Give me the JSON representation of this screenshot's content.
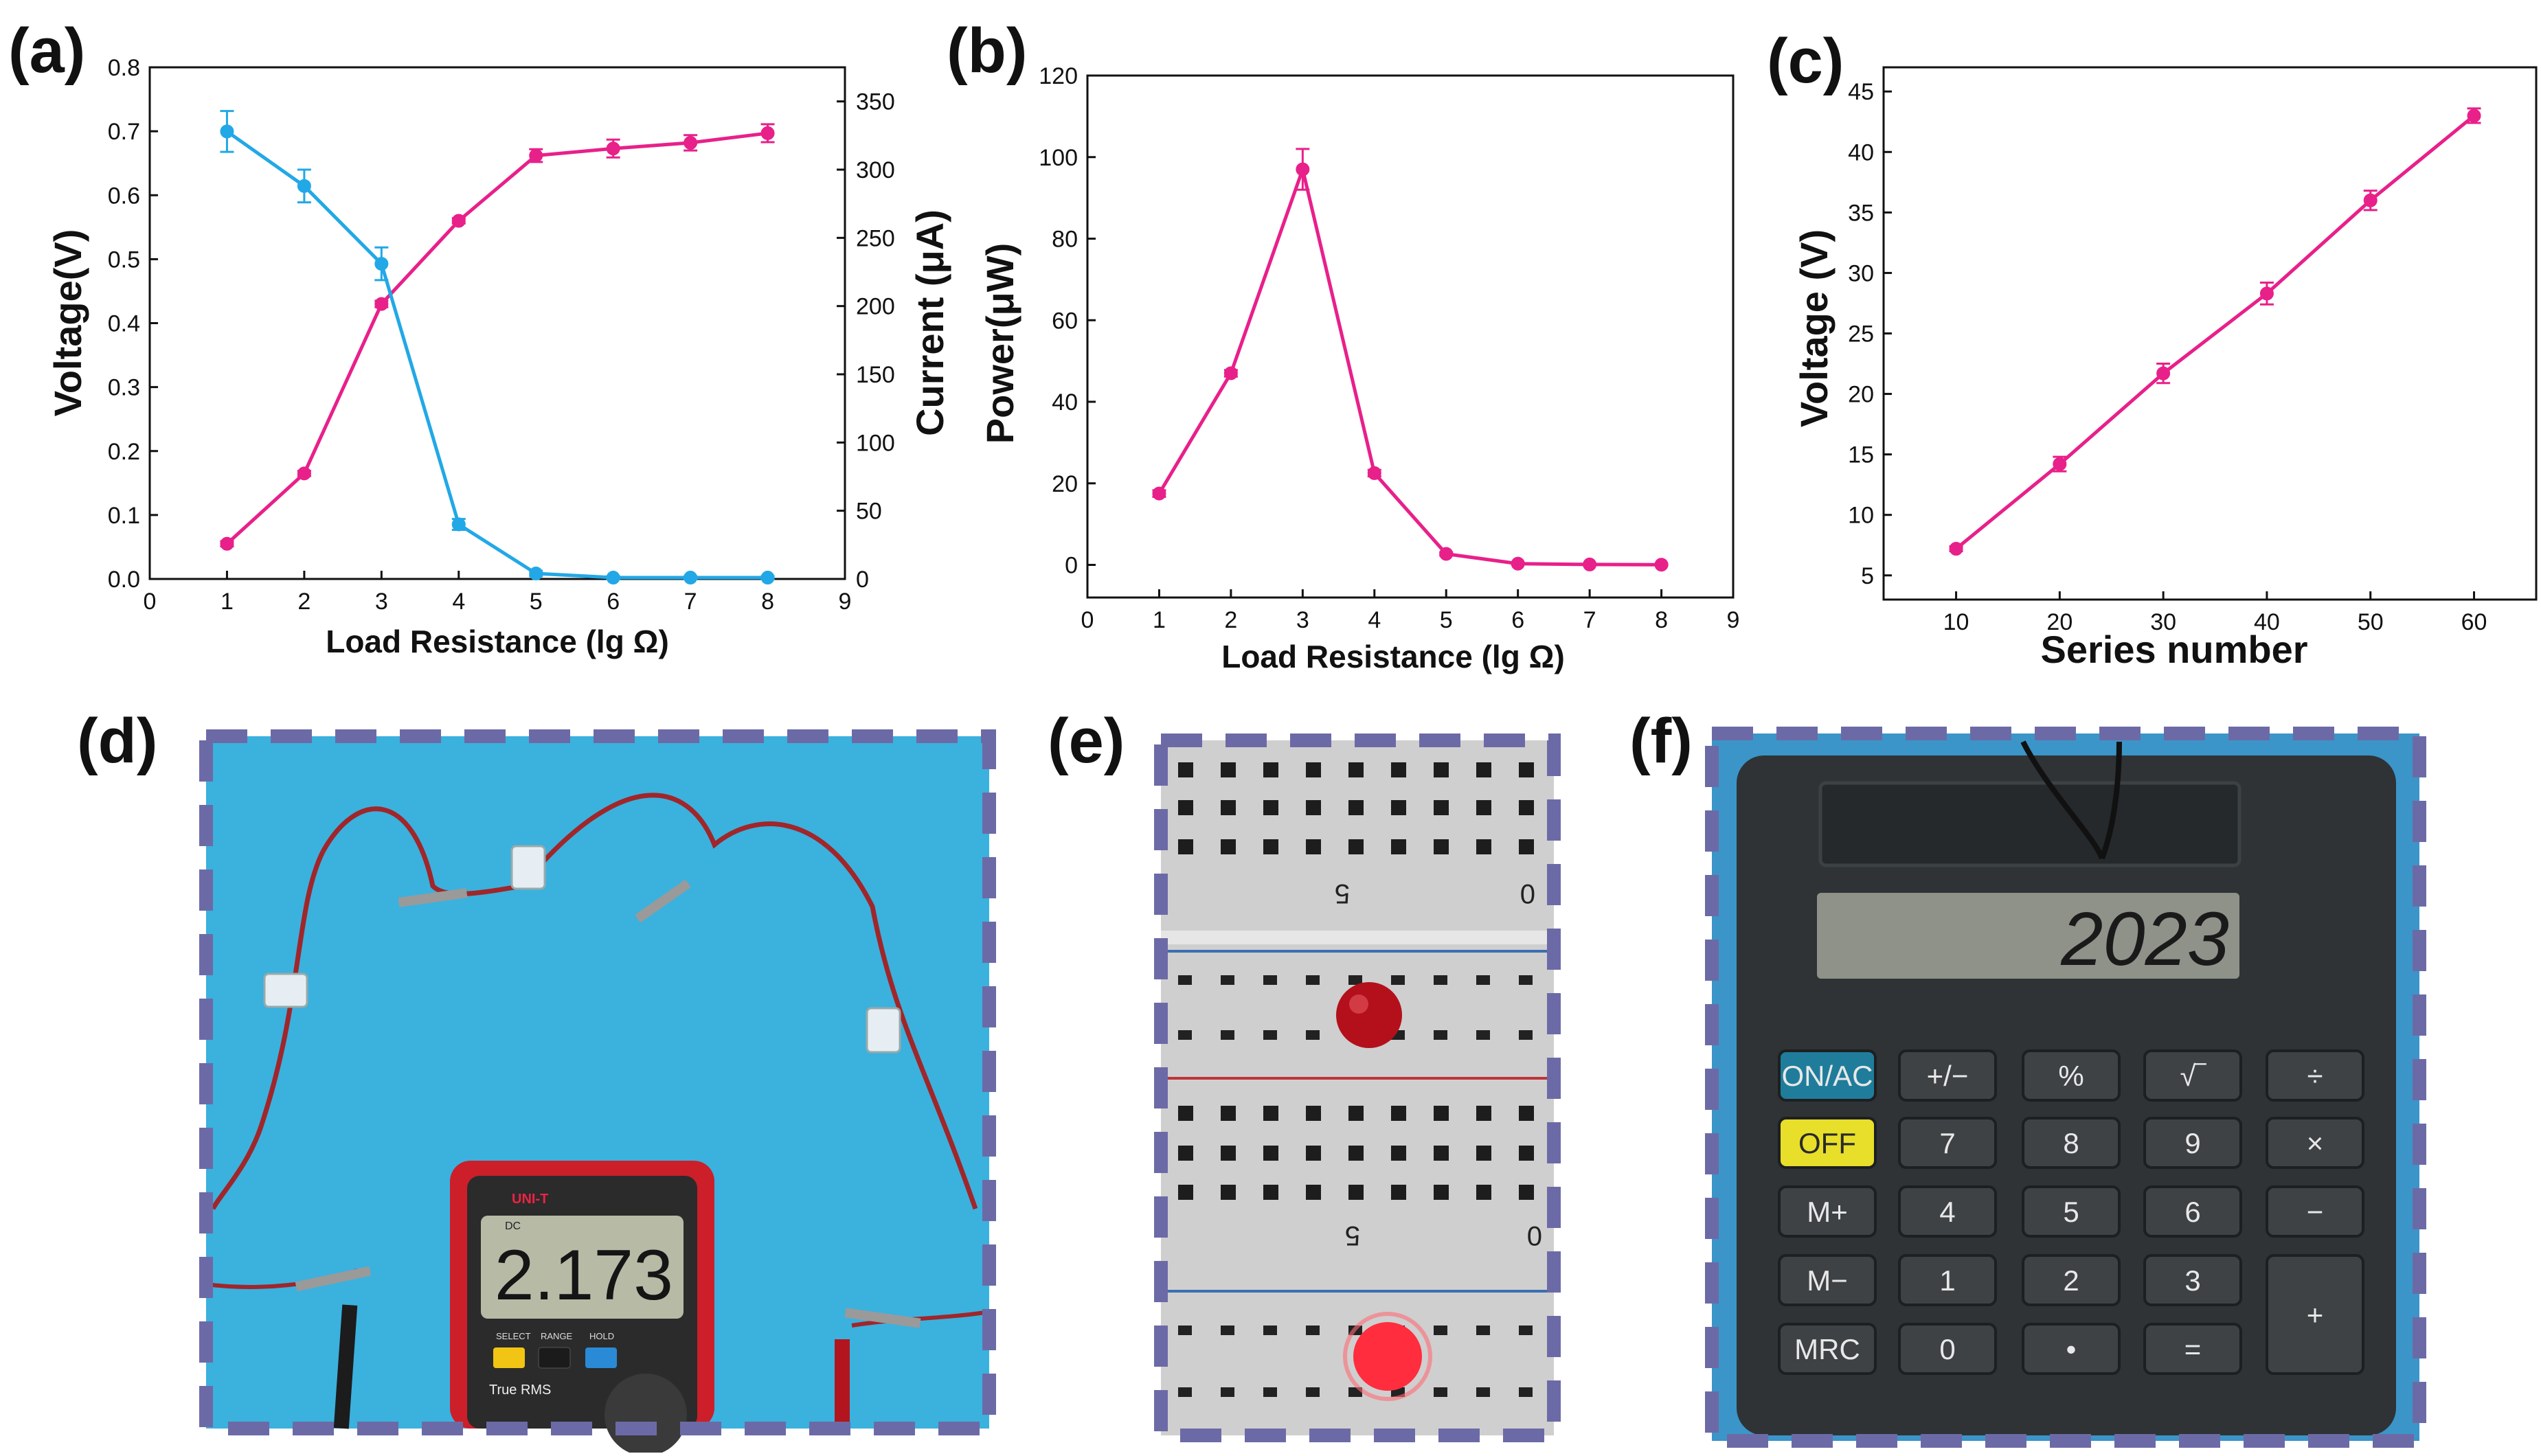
{
  "colors": {
    "pink": "#e8208a",
    "blue": "#22a8e6",
    "frame": "#6c6aa6"
  },
  "panels": {
    "a": "(a)",
    "b": "(b)",
    "c": "(c)",
    "d": "(d)",
    "e": "(e)",
    "f": "(f)"
  },
  "chart_data": [
    {
      "id": "a",
      "type": "line",
      "xlabel": "Load Resistance (lg Ω)",
      "ylabel": "Voltage(V)",
      "y2label": "Current (μA)",
      "xlim": [
        0,
        9
      ],
      "ylim": [
        0,
        0.8
      ],
      "y2lim": [
        0,
        375
      ],
      "xticks": [
        0,
        1,
        2,
        3,
        4,
        5,
        6,
        7,
        8,
        9
      ],
      "yticks": [
        0.0,
        0.1,
        0.2,
        0.3,
        0.4,
        0.5,
        0.6,
        0.7,
        0.8
      ],
      "ytick_labels": [
        "0.0",
        "0.1",
        "0.2",
        "0.3",
        "0.4",
        "0.5",
        "0.6",
        "0.7",
        "0.8"
      ],
      "y2ticks": [
        0,
        50,
        100,
        150,
        200,
        250,
        300,
        350
      ],
      "x": [
        1,
        2,
        3,
        4,
        5,
        6,
        7,
        8
      ],
      "series": [
        {
          "name": "Voltage",
          "axis": "left",
          "color": "#e8208a",
          "values": [
            0.055,
            0.165,
            0.43,
            0.56,
            0.662,
            0.673,
            0.682,
            0.697
          ],
          "errors": [
            0.004,
            0.004,
            0.005,
            0.004,
            0.01,
            0.014,
            0.012,
            0.014
          ]
        },
        {
          "name": "Current",
          "axis": "right",
          "color": "#22a8e6",
          "values": [
            328,
            288,
            231,
            40,
            4,
            1,
            1,
            1
          ],
          "errors": [
            15,
            12,
            12,
            4,
            2,
            1,
            1,
            1
          ]
        }
      ]
    },
    {
      "id": "b",
      "type": "line",
      "xlabel": "Load Resistance (lg Ω)",
      "ylabel": "Power(μW)",
      "xlim": [
        0,
        9
      ],
      "ylim": [
        -8,
        120
      ],
      "xticks": [
        0,
        1,
        2,
        3,
        4,
        5,
        6,
        7,
        8,
        9
      ],
      "yticks": [
        0,
        20,
        40,
        60,
        80,
        100,
        120
      ],
      "x": [
        1,
        2,
        3,
        4,
        5,
        6,
        7,
        8
      ],
      "series": [
        {
          "name": "Power",
          "color": "#e8208a",
          "values": [
            17.5,
            47,
            97,
            22.5,
            2.7,
            0.3,
            0.1,
            0.05
          ],
          "errors": [
            0.8,
            0.8,
            5,
            0.8,
            0.4,
            0.2,
            0.2,
            0.2
          ]
        }
      ]
    },
    {
      "id": "c",
      "type": "line",
      "xlabel": "Series number",
      "ylabel": "Voltage (V)",
      "xlim": [
        3,
        66
      ],
      "ylim": [
        3,
        47
      ],
      "xticks": [
        10,
        20,
        30,
        40,
        50,
        60
      ],
      "yticks": [
        5,
        10,
        15,
        20,
        25,
        30,
        35,
        40,
        45
      ],
      "x": [
        10,
        20,
        30,
        40,
        50,
        60
      ],
      "series": [
        {
          "name": "Voltage",
          "color": "#e8208a",
          "values": [
            7.2,
            14.2,
            21.7,
            28.3,
            36.0,
            43.0
          ],
          "errors": [
            0.2,
            0.6,
            0.8,
            0.9,
            0.8,
            0.6
          ]
        }
      ]
    }
  ],
  "photos": {
    "multimeter": {
      "brand": "UNI-T",
      "reading": "2.173",
      "mode": "DC",
      "select_label": "SELECT",
      "range_label": "RANGE",
      "hold_label": "HOLD",
      "true_rms": "True RMS"
    },
    "breadboard": {
      "top_numbers": [
        "5",
        "0"
      ],
      "bottom_numbers": [
        "5",
        "0"
      ]
    },
    "calculator": {
      "display": "2023",
      "keys": [
        [
          "ON/AC",
          "+/−",
          "%",
          "√‾",
          "÷"
        ],
        [
          "OFF",
          "7",
          "8",
          "9",
          "×"
        ],
        [
          "M+",
          "4",
          "5",
          "6",
          "−"
        ],
        [
          "M−",
          "1",
          "2",
          "3",
          "+"
        ],
        [
          "MRC",
          "0",
          "•",
          "="
        ]
      ]
    }
  }
}
